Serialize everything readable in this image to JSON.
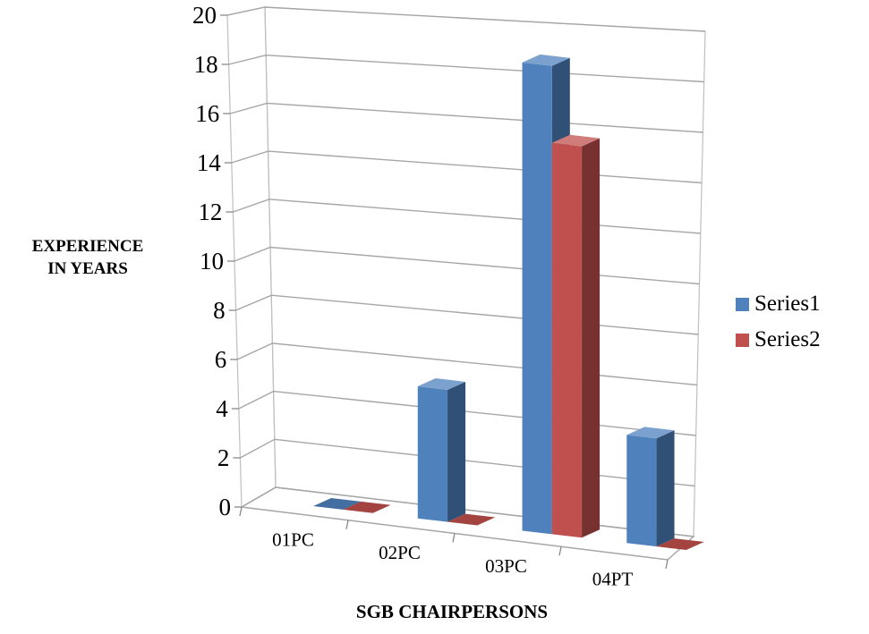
{
  "chart_data": {
    "type": "bar",
    "style": "3d-column",
    "categories": [
      "01PC",
      "02PC",
      "03PC",
      "04PT"
    ],
    "series": [
      {
        "name": "Series1",
        "color": "#4F81BD",
        "values": [
          0,
          5.5,
          19.5,
          4.5
        ]
      },
      {
        "name": "Series2",
        "color": "#C0504D",
        "values": [
          0,
          0,
          16.3,
          0
        ]
      }
    ],
    "yticks": [
      "0",
      "2",
      "4",
      "6",
      "8",
      "10",
      "12",
      "14",
      "16",
      "18",
      "20"
    ],
    "ylim": [
      0,
      20
    ],
    "xlabel": "SGB CHAIRPERSONS",
    "ylabel_lines": [
      "EXPERIENCE",
      "IN YEARS"
    ],
    "grid": true,
    "legend_position": "right"
  }
}
